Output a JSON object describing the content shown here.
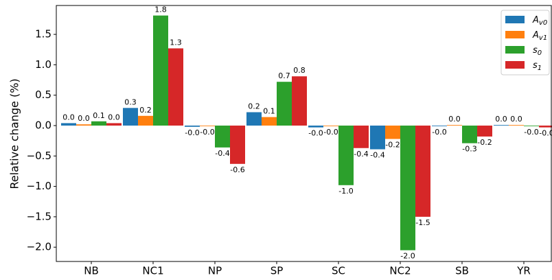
{
  "chart_data": {
    "type": "bar",
    "y_label": "Relative change (%)",
    "categories": [
      "NB",
      "NC1",
      "NP",
      "SP",
      "SC",
      "NC2",
      "SB",
      "YR"
    ],
    "series": [
      {
        "name": "Av0",
        "color": "#1f77b4",
        "values": [
          0.04,
          0.29,
          -0.02,
          0.22,
          -0.03,
          -0.39,
          -0.01,
          0.01
        ],
        "value_labels": [
          "0.0",
          "0.3",
          "-0.0",
          "0.2",
          "-0.0",
          "-0.4",
          "-0.0",
          "0.0"
        ]
      },
      {
        "name": "Av1",
        "color": "#ff7f0e",
        "values": [
          0.02,
          0.16,
          -0.01,
          0.14,
          -0.01,
          -0.22,
          0.01,
          0.01
        ],
        "value_labels": [
          "0.0",
          "0.2",
          "-0.0",
          "0.1",
          "-0.0",
          "-0.2",
          "0.0",
          "0.0"
        ]
      },
      {
        "name": "s0",
        "color": "#2ca02c",
        "values": [
          0.07,
          1.81,
          -0.36,
          0.72,
          -0.98,
          -2.05,
          -0.29,
          -0.01
        ],
        "value_labels": [
          "0.1",
          "1.8",
          "-0.4",
          "0.7",
          "-1.0",
          "-2.0",
          "-0.3",
          "-0.0"
        ]
      },
      {
        "name": "s1",
        "color": "#d62728",
        "values": [
          0.04,
          1.27,
          -0.63,
          0.81,
          -0.37,
          -1.5,
          -0.18,
          -0.03
        ],
        "value_labels": [
          "0.0",
          "1.3",
          "-0.6",
          "0.8",
          "-0.4",
          "-1.5",
          "-0.2",
          "-0.0"
        ]
      }
    ],
    "ylim": [
      -2.235,
      1.975
    ],
    "yticks": [
      {
        "value": -2.0,
        "label": "−2.0"
      },
      {
        "value": -1.5,
        "label": "−1.5"
      },
      {
        "value": -1.0,
        "label": "−1.0"
      },
      {
        "value": -0.5,
        "label": "−0.5"
      },
      {
        "value": 0.0,
        "label": "0.0"
      },
      0.5,
      {
        "value": 1.0,
        "label": "1.0"
      },
      1.5
    ],
    "grid": false,
    "legend": "upper right"
  }
}
